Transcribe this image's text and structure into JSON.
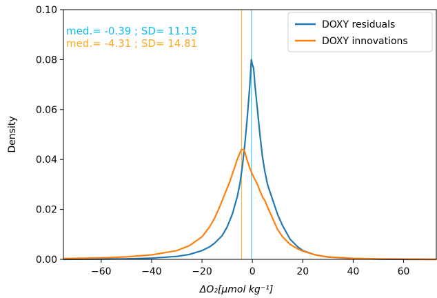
{
  "chart_data": {
    "type": "line",
    "title": "",
    "xlabel": "ΔO₂[μmol kg⁻¹]",
    "ylabel": "Density",
    "xlim": [
      -75,
      73
    ],
    "ylim": [
      0,
      0.1
    ],
    "xticks": [
      -60,
      -40,
      -20,
      0,
      20,
      40,
      60
    ],
    "xtick_labels": [
      "−60",
      "−40",
      "−20",
      "0",
      "20",
      "40",
      "60"
    ],
    "yticks": [
      0,
      0.02,
      0.04,
      0.06,
      0.08,
      0.1
    ],
    "ytick_labels": [
      "0.00",
      "0.02",
      "0.04",
      "0.06",
      "0.08",
      "0.10"
    ],
    "grid": false,
    "legend": "top-right",
    "series": [
      {
        "name": "DOXY residuals",
        "color": "#1f77b4",
        "x": [
          -75,
          -60,
          -50,
          -40,
          -30,
          -25,
          -20,
          -17,
          -15,
          -12,
          -10,
          -8,
          -6,
          -5,
          -4,
          -3,
          -2,
          -1,
          -0.4,
          0,
          0.5,
          1,
          2,
          3,
          4,
          5,
          6,
          8,
          10,
          12,
          15,
          18,
          20,
          25,
          30,
          40,
          50,
          60,
          73
        ],
        "y": [
          0.0,
          0.0001,
          0.0002,
          0.0005,
          0.0012,
          0.002,
          0.0035,
          0.005,
          0.0065,
          0.0095,
          0.013,
          0.018,
          0.025,
          0.03,
          0.037,
          0.046,
          0.057,
          0.07,
          0.08,
          0.078,
          0.0765,
          0.07,
          0.06,
          0.05,
          0.041,
          0.035,
          0.03,
          0.024,
          0.018,
          0.0135,
          0.008,
          0.005,
          0.0035,
          0.0018,
          0.0009,
          0.0003,
          0.0001,
          0.0,
          0.0
        ]
      },
      {
        "name": "DOXY innovations",
        "color": "#ff7f0e",
        "x": [
          -75,
          -60,
          -50,
          -40,
          -30,
          -25,
          -20,
          -17,
          -15,
          -13,
          -11,
          -9,
          -8,
          -7,
          -6,
          -5,
          -4.3,
          -3.5,
          -3,
          -2,
          -1,
          0,
          1,
          2,
          3,
          4,
          5,
          6,
          8,
          10,
          12,
          15,
          18,
          20,
          25,
          30,
          40,
          50,
          60,
          73
        ],
        "y": [
          0.0003,
          0.0006,
          0.001,
          0.0018,
          0.0035,
          0.0055,
          0.009,
          0.013,
          0.0165,
          0.021,
          0.026,
          0.031,
          0.034,
          0.037,
          0.04,
          0.0425,
          0.044,
          0.044,
          0.043,
          0.0395,
          0.0365,
          0.034,
          0.032,
          0.03,
          0.0275,
          0.025,
          0.0235,
          0.021,
          0.0165,
          0.012,
          0.009,
          0.006,
          0.0042,
          0.0033,
          0.0018,
          0.001,
          0.0004,
          0.0002,
          0.0001,
          0.0
        ]
      }
    ],
    "vlines": [
      {
        "name": "residuals-median",
        "x": -0.39,
        "color": "#33bbee"
      },
      {
        "name": "innovations-median",
        "x": -4.31,
        "color": "#ffaa22"
      }
    ],
    "annotations": [
      {
        "name": "residuals-stats",
        "text": "med.= -0.39 ; SD= 11.15",
        "color": "#11bbee"
      },
      {
        "name": "innovations-stats",
        "text": "med.= -4.31 ; SD= 14.81",
        "color": "#ffaa22"
      }
    ]
  }
}
